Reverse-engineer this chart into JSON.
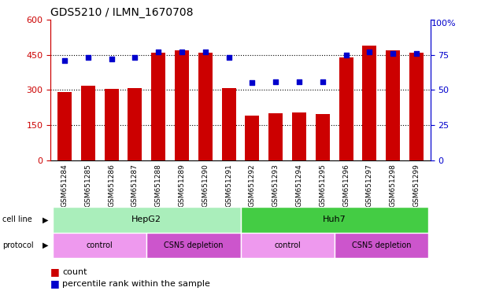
{
  "title": "GDS5210 / ILMN_1670708",
  "samples": [
    "GSM651284",
    "GSM651285",
    "GSM651286",
    "GSM651287",
    "GSM651288",
    "GSM651289",
    "GSM651290",
    "GSM651291",
    "GSM651292",
    "GSM651293",
    "GSM651294",
    "GSM651295",
    "GSM651296",
    "GSM651297",
    "GSM651298",
    "GSM651299"
  ],
  "counts": [
    290,
    318,
    305,
    308,
    460,
    468,
    460,
    308,
    190,
    200,
    205,
    198,
    440,
    490,
    468,
    458
  ],
  "percentiles": [
    71,
    73,
    72,
    73,
    77,
    77,
    77,
    73,
    55,
    56,
    56,
    56,
    75,
    77,
    76,
    76
  ],
  "ylim_left": [
    0,
    600
  ],
  "ylim_right": [
    0,
    100
  ],
  "yticks_left": [
    0,
    150,
    300,
    450,
    600
  ],
  "yticks_right": [
    0,
    25,
    50,
    75,
    100
  ],
  "bar_color": "#cc0000",
  "dot_color": "#0000cc",
  "cell_line_color_hepg2": "#aaeebb",
  "cell_line_color_huh7": "#44cc44",
  "protocol_color_light": "#ee99ee",
  "protocol_color_dark": "#cc55cc",
  "legend_count_label": "count",
  "legend_percentile_label": "percentile rank within the sample",
  "plot_bg": "#e8e8e8",
  "tick_label_bg": "#cccccc"
}
